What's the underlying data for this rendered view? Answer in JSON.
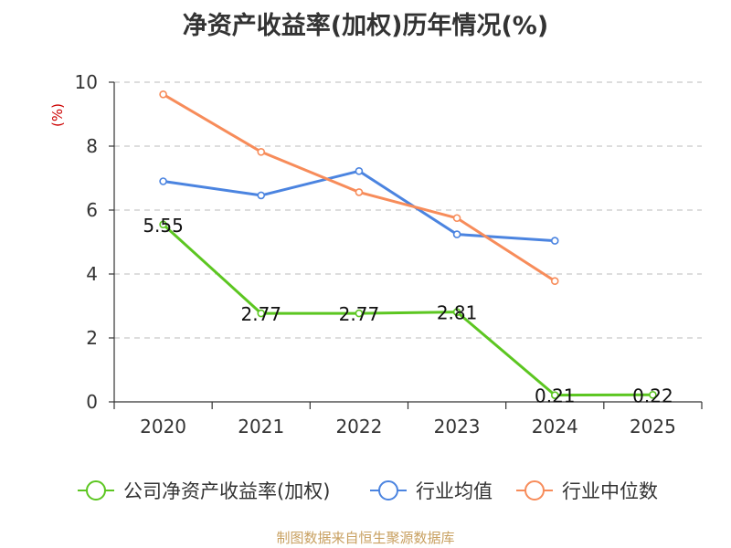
{
  "chart_data": {
    "type": "line",
    "title": "净资产收益率(加权)历年情况(%)",
    "ylabel": "(%)",
    "xlabel": "",
    "categories": [
      "2020",
      "2021",
      "2022",
      "2023",
      "2024",
      "2025"
    ],
    "ylim": [
      0,
      10
    ],
    "yticks": [
      0,
      2,
      4,
      6,
      8,
      10
    ],
    "grid": "horizontal-dashed",
    "legend_position": "bottom",
    "series": [
      {
        "name": "公司净资产收益率(加权)",
        "color": "#5cc621",
        "values": [
          5.55,
          2.77,
          2.77,
          2.81,
          0.21,
          0.22
        ],
        "labels": [
          "5.55",
          "2.77",
          "2.77",
          "2.81",
          "0.21",
          "0.22"
        ]
      },
      {
        "name": "行业均值",
        "color": "#4b84e0",
        "values": [
          6.9,
          6.46,
          7.22,
          5.24,
          5.04,
          null
        ]
      },
      {
        "name": "行业中位数",
        "color": "#f78c5a",
        "values": [
          9.62,
          7.82,
          6.56,
          5.75,
          3.78,
          null
        ]
      }
    ]
  },
  "footer": "制图数据来自恒生聚源数据库"
}
